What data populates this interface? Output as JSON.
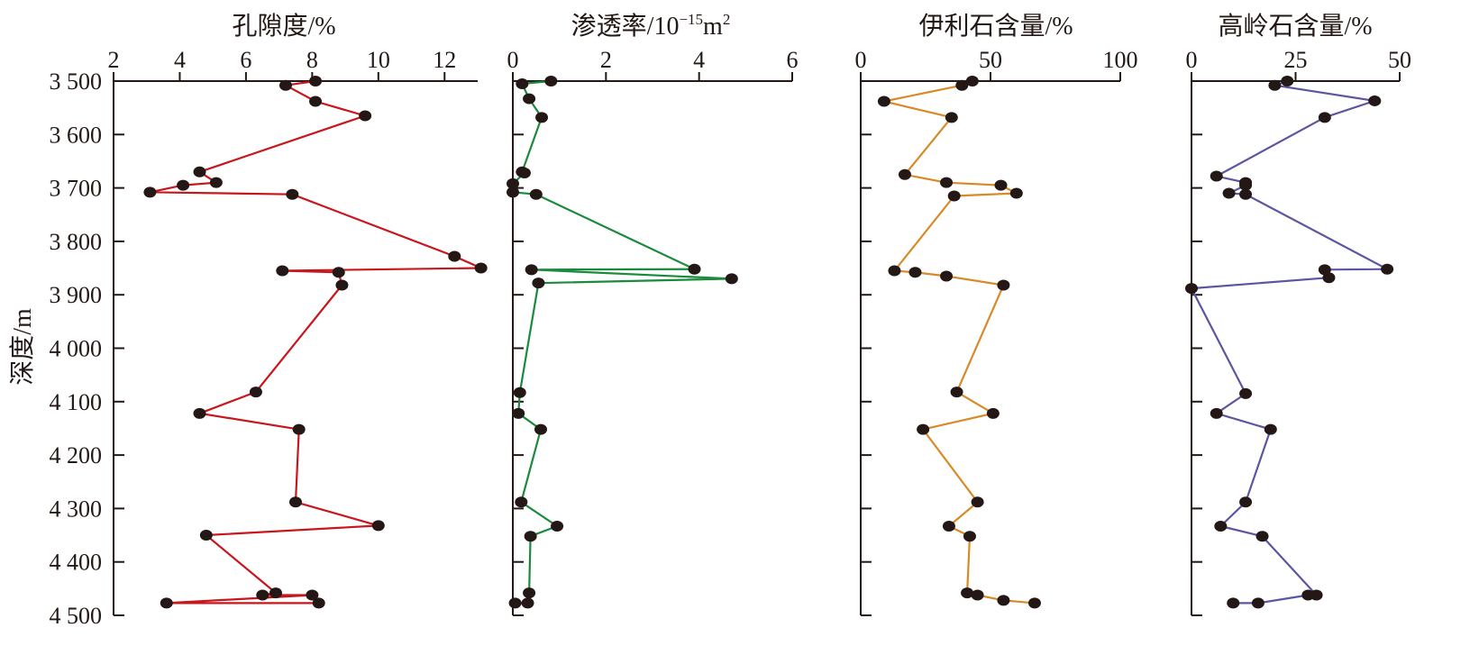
{
  "chart_data": [
    {
      "type": "line",
      "title": "孔隙度/%",
      "x_ticks": [
        "2",
        "4",
        "6",
        "8",
        "10",
        "12"
      ],
      "xlim": [
        2,
        13
      ],
      "ylim": [
        3500,
        4500
      ],
      "color": "#c8161d",
      "series": [
        {
          "points": [
            [
              8.1,
              3500
            ],
            [
              7.2,
              3508
            ],
            [
              8.1,
              3538
            ],
            [
              9.6,
              3565
            ],
            [
              4.6,
              3670
            ],
            [
              5.1,
              3690
            ],
            [
              4.1,
              3695
            ],
            [
              3.1,
              3708
            ],
            [
              7.4,
              3712
            ],
            [
              12.3,
              3828
            ],
            [
              13.1,
              3850
            ],
            [
              7.1,
              3855
            ],
            [
              8.8,
              3858
            ],
            [
              8.9,
              3882
            ],
            [
              6.3,
              4082
            ],
            [
              4.6,
              4122
            ],
            [
              7.6,
              4152
            ],
            [
              7.5,
              4288
            ],
            [
              10,
              4332
            ],
            [
              4.8,
              4350
            ],
            [
              6.9,
              4458
            ],
            [
              6.5,
              4462
            ],
            [
              8.0,
              4462
            ],
            [
              3.6,
              4477
            ],
            [
              8.2,
              4477
            ]
          ]
        }
      ]
    },
    {
      "type": "line",
      "title": "渗透率/10",
      "title_sup": "−15",
      "title_unit": "m",
      "title_unit_sup": "2",
      "x_ticks": [
        "0",
        "2",
        "4",
        "6"
      ],
      "xlim": [
        0,
        6
      ],
      "ylim": [
        3500,
        4500
      ],
      "color": "#1a8a3c",
      "series": [
        {
          "points": [
            [
              0.82,
              3500
            ],
            [
              0.2,
              3505
            ],
            [
              0.35,
              3533
            ],
            [
              0.62,
              3568
            ],
            [
              0.2,
              3670
            ],
            [
              0.25,
              3672
            ],
            [
              0.0,
              3692
            ],
            [
              0.0,
              3708
            ],
            [
              0.5,
              3712
            ],
            [
              3.9,
              3852
            ],
            [
              0.4,
              3853
            ],
            [
              4.7,
              3870
            ],
            [
              0.55,
              3878
            ],
            [
              0.15,
              4083
            ],
            [
              0.12,
              4122
            ],
            [
              0.6,
              4152
            ],
            [
              0.18,
              4288
            ],
            [
              0.95,
              4333
            ],
            [
              0.38,
              4352
            ],
            [
              0.35,
              4458
            ],
            [
              0.32,
              4477
            ],
            [
              0.05,
              4477
            ]
          ]
        }
      ]
    },
    {
      "type": "line",
      "title": "伊利石含量/%",
      "x_ticks": [
        "0",
        "50",
        "100"
      ],
      "xlim": [
        0,
        100
      ],
      "ylim": [
        3500,
        4500
      ],
      "color": "#d98a28",
      "series": [
        {
          "points": [
            [
              43,
              3500
            ],
            [
              39,
              3508
            ],
            [
              9,
              3538
            ],
            [
              35,
              3568
            ],
            [
              17,
              3675
            ],
            [
              33,
              3690
            ],
            [
              54,
              3695
            ],
            [
              60,
              3710
            ],
            [
              36,
              3715
            ],
            [
              13,
              3855
            ],
            [
              21,
              3858
            ],
            [
              33,
              3865
            ],
            [
              55,
              3882
            ],
            [
              37,
              4082
            ],
            [
              51,
              4122
            ],
            [
              24,
              4152
            ],
            [
              45,
              4288
            ],
            [
              34,
              4333
            ],
            [
              42,
              4352
            ],
            [
              41,
              4458
            ],
            [
              45,
              4462
            ],
            [
              55,
              4472
            ],
            [
              67,
              4477
            ]
          ]
        }
      ]
    },
    {
      "type": "line",
      "title": "高岭石含量/%",
      "x_ticks": [
        "0",
        "25",
        "50"
      ],
      "xlim": [
        0,
        50
      ],
      "ylim": [
        3500,
        4500
      ],
      "color": "#5b56a0",
      "series": [
        {
          "points": [
            [
              23,
              3500
            ],
            [
              20,
              3508
            ],
            [
              44,
              3537
            ],
            [
              32,
              3568
            ],
            [
              6,
              3678
            ],
            [
              13,
              3690
            ],
            [
              13,
              3695
            ],
            [
              9,
              3710
            ],
            [
              13,
              3712
            ],
            [
              47,
              3852
            ],
            [
              32,
              3853
            ],
            [
              33,
              3868
            ],
            [
              0,
              3888
            ],
            [
              13,
              4085
            ],
            [
              6,
              4122
            ],
            [
              19,
              4152
            ],
            [
              13,
              4288
            ],
            [
              7,
              4333
            ],
            [
              17,
              4352
            ],
            [
              30,
              4462
            ],
            [
              28,
              4462
            ],
            [
              16,
              4477
            ],
            [
              10,
              4477
            ]
          ]
        }
      ]
    }
  ],
  "y_axis": {
    "label": "深度/m",
    "ticks": [
      {
        "value": 3500,
        "label": "3 500"
      },
      {
        "value": 3600,
        "label": "3 600"
      },
      {
        "value": 3700,
        "label": "3 700"
      },
      {
        "value": 3800,
        "label": "3 800"
      },
      {
        "value": 3900,
        "label": "3 900"
      },
      {
        "value": 4000,
        "label": "4 000"
      },
      {
        "value": 4100,
        "label": "4 100"
      },
      {
        "value": 4200,
        "label": "4 200"
      },
      {
        "value": 4300,
        "label": "4 300"
      },
      {
        "value": 4400,
        "label": "4 400"
      },
      {
        "value": 4500,
        "label": "4 500"
      }
    ]
  },
  "marker_color": "#231815"
}
